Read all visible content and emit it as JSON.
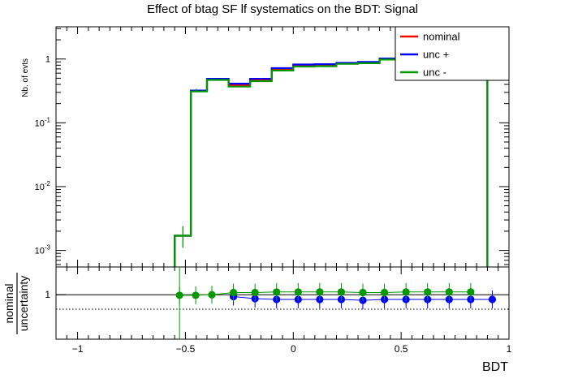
{
  "chart_data": [
    {
      "type": "line",
      "subtype": "step-histogram",
      "title": "Effect of btag SF lf systematics on the BDT: Signal",
      "ylabel": "Nb. of evts",
      "xlabel": "BDT",
      "yscale": "log",
      "xlim": [
        -1.1,
        1.0
      ],
      "ylim": [
        0.00055,
        3.2
      ],
      "y_ticks": [
        {
          "v": 0.001,
          "base": "10",
          "exp": "-3"
        },
        {
          "v": 0.01,
          "base": "10",
          "exp": "-2"
        },
        {
          "v": 0.1,
          "base": "10",
          "exp": "-1"
        },
        {
          "v": 1,
          "base": "1",
          "exp": ""
        }
      ],
      "bin_edges": [
        -0.55,
        -0.475,
        -0.4,
        -0.3,
        -0.2,
        -0.1,
        0.0,
        0.1,
        0.2,
        0.3,
        0.4,
        0.5,
        0.6,
        0.7,
        0.8,
        0.9
      ],
      "series": [
        {
          "name": "nominal",
          "color": "#ff0000",
          "values": [
            0.0017,
            0.32,
            0.48,
            0.39,
            0.47,
            0.69,
            0.79,
            0.8,
            0.86,
            0.88,
            1.0,
            1.15,
            1.3,
            1.5,
            1.7
          ]
        },
        {
          "name": "unc +",
          "color": "#0000ff",
          "values": [
            0.0017,
            0.32,
            0.49,
            0.41,
            0.49,
            0.72,
            0.82,
            0.83,
            0.87,
            0.9,
            1.02,
            1.17,
            1.32,
            1.52,
            1.72
          ]
        },
        {
          "name": "unc -",
          "color": "#009900",
          "values": [
            0.0017,
            0.31,
            0.47,
            0.37,
            0.45,
            0.66,
            0.76,
            0.77,
            0.84,
            0.86,
            0.98,
            1.12,
            1.28,
            1.47,
            1.68
          ]
        }
      ],
      "errors": [
        {
          "x": -0.512,
          "y": 0.0017,
          "ylo": 0.0011,
          "yhi": 0.0024
        },
        {
          "x": -0.45,
          "y": 0.32,
          "ylo": 0.3,
          "yhi": 0.34
        }
      ],
      "legend": {
        "position": "top-right",
        "entries": [
          "nominal",
          "unc +",
          "unc -"
        ]
      },
      "grid": false
    },
    {
      "type": "scatter",
      "ylabel_top": "nominal",
      "ylabel_bottom": "uncertainty",
      "xlabel": "BDT",
      "xlim": [
        -1.1,
        1.0
      ],
      "ylim": [
        0.6,
        1.25
      ],
      "reference_line": 1.0,
      "dotted_line": 0.87,
      "x_ticks": [
        {
          "v": -1,
          "label": "−1"
        },
        {
          "v": -0.5,
          "label": "−0.5"
        },
        {
          "v": 0,
          "label": "0"
        },
        {
          "v": 0.5,
          "label": "0.5"
        },
        {
          "v": 1,
          "label": "1"
        }
      ],
      "y_ticks": [
        {
          "v": 1,
          "label": "1"
        }
      ],
      "series": [
        {
          "name": "unc +",
          "color": "#0000ff",
          "points": [
            [
              -0.3,
              0.983
            ],
            [
              -0.2,
              0.965
            ],
            [
              -0.1,
              0.958
            ],
            [
              0.0,
              0.958
            ],
            [
              0.1,
              0.958
            ],
            [
              0.2,
              0.958
            ],
            [
              0.3,
              0.95
            ],
            [
              0.4,
              0.958
            ],
            [
              0.5,
              0.958
            ],
            [
              0.6,
              0.958
            ],
            [
              0.7,
              0.958
            ],
            [
              0.8,
              0.958
            ],
            [
              0.9,
              0.958
            ]
          ]
        },
        {
          "name": "unc -",
          "color": "#009900",
          "points": [
            [
              -0.55,
              0.995
            ],
            [
              -0.475,
              0.995
            ],
            [
              -0.4,
              1.0
            ],
            [
              -0.3,
              1.02
            ],
            [
              -0.2,
              1.02
            ],
            [
              -0.1,
              1.025
            ],
            [
              0.0,
              1.025
            ],
            [
              0.1,
              1.025
            ],
            [
              0.2,
              1.025
            ],
            [
              0.3,
              1.02
            ],
            [
              0.4,
              1.02
            ],
            [
              0.5,
              1.025
            ],
            [
              0.6,
              1.025
            ],
            [
              0.7,
              1.025
            ],
            [
              0.8,
              1.025
            ]
          ]
        }
      ]
    }
  ]
}
